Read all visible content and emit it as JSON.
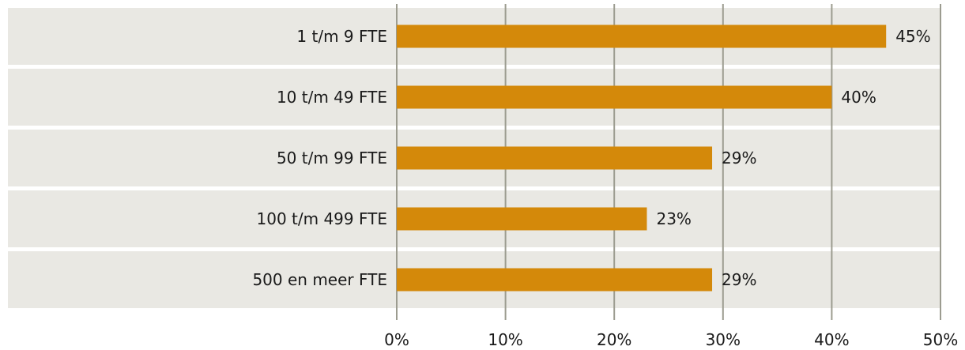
{
  "chart_data": {
    "type": "bar",
    "orientation": "horizontal",
    "categories": [
      "1 t/m 9 FTE",
      "10 t/m 49 FTE",
      "50 t/m 99 FTE",
      "100 t/m 499 FTE",
      "500 en meer FTE"
    ],
    "values": [
      45,
      40,
      29,
      23,
      29
    ],
    "value_labels": [
      "45%",
      "40%",
      "29%",
      "23%",
      "29%"
    ],
    "x_ticks": [
      "0%",
      "10%",
      "20%",
      "30%",
      "40%",
      "50%"
    ],
    "xlim": [
      0,
      50
    ],
    "grid": true,
    "colors": {
      "bar": "#D4890A",
      "row_band": "#E9E8E3",
      "grid": "#9C9C90"
    }
  }
}
